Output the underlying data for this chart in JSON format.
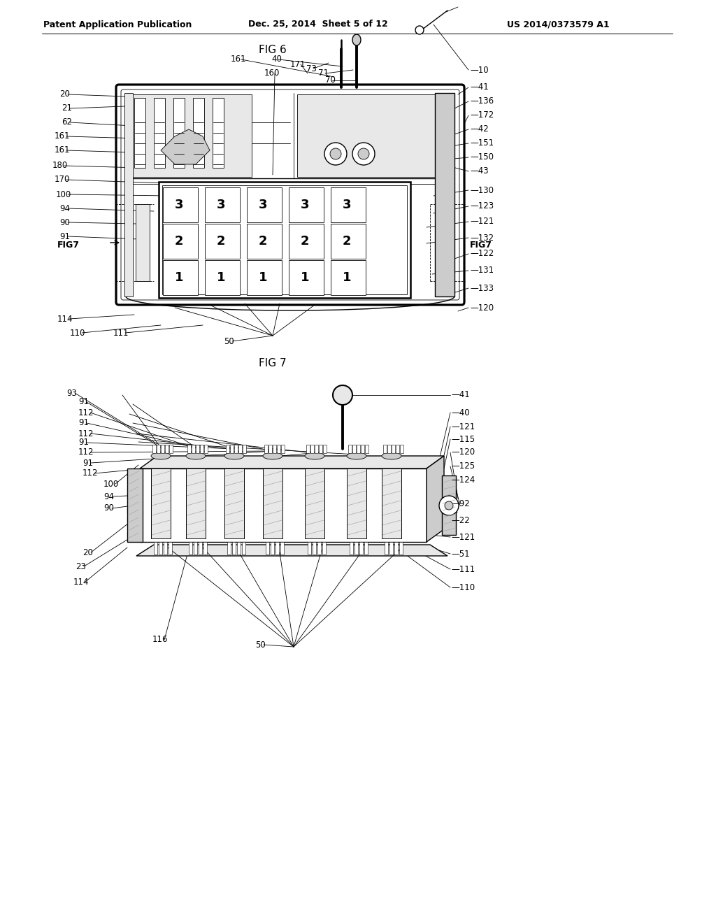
{
  "page_bg": "#ffffff",
  "header_left": "Patent Application Publication",
  "header_mid": "Dec. 25, 2014  Sheet 5 of 12",
  "header_right": "US 2014/0373579 A1",
  "fig6_label": "FIG 6",
  "fig7_label": "FIG 7",
  "fig_width": 1024,
  "fig_height": 1320,
  "line_color": "#000000",
  "line_width": 1.0,
  "thin_line": 0.6,
  "thick_line": 1.8,
  "annotation_fontsize": 8.5,
  "header_fontsize": 9,
  "fig_label_fontsize": 11,
  "text_color": "#000000",
  "gray_light": "#e8e8e8",
  "gray_mid": "#cccccc",
  "gray_dark": "#aaaaaa",
  "hatch_color": "#888888"
}
